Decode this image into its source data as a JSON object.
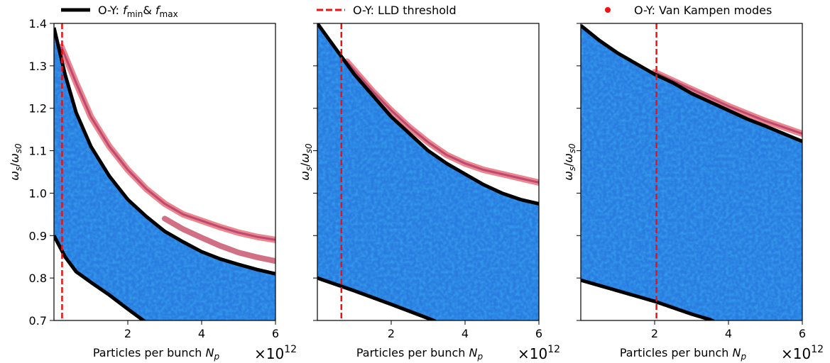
{
  "legend": [
    {
      "kind": "line",
      "prefix": "O-Y: ",
      "text": "& ",
      "math1": "min",
      "math2": "max",
      "color": "#000000"
    },
    {
      "kind": "dashed",
      "text": "O-Y: LLD threshold",
      "color": "#ee1111"
    },
    {
      "kind": "dot",
      "text": "O-Y: Van Kampen modes",
      "color": "#ee1111"
    }
  ],
  "common": {
    "xlabel": "Particles per bunch",
    "xlabel_symbol": "N",
    "xlabel_sub": "p",
    "ylabel_symbol": "ω",
    "ylabel_num_sub": "s",
    "ylabel_den_sub": "s0",
    "x_multiplier": "×10",
    "x_multiplier_exp": "12",
    "heatmap_color": "#2a7ce0",
    "band_color": "#b23a6a"
  },
  "chart_data": [
    {
      "type": "heatmap",
      "title": "",
      "xlabel": "Particles per bunch N_p",
      "ylabel": "ω_s/ω_s0",
      "xlim": [
        0,
        6
      ],
      "ylim": [
        0.7,
        1.4
      ],
      "xticks": [
        "2",
        "4",
        "6"
      ],
      "xtick_values": [
        2,
        4,
        6
      ],
      "yticks": [
        "0.7",
        "0.8",
        "0.9",
        "1.0",
        "1.1",
        "1.2",
        "1.3",
        "1.4"
      ],
      "ytick_values": [
        0.7,
        0.8,
        0.9,
        1.0,
        1.1,
        1.2,
        1.3,
        1.4
      ],
      "show_ytick_labels": true,
      "lld_threshold": 0.22,
      "f_max": [
        [
          0,
          1.39
        ],
        [
          0.3,
          1.28
        ],
        [
          0.6,
          1.19
        ],
        [
          1.0,
          1.11
        ],
        [
          1.5,
          1.04
        ],
        [
          2.0,
          0.985
        ],
        [
          2.5,
          0.945
        ],
        [
          3.0,
          0.91
        ],
        [
          3.5,
          0.885
        ],
        [
          4.0,
          0.862
        ],
        [
          4.5,
          0.845
        ],
        [
          5.0,
          0.832
        ],
        [
          5.5,
          0.82
        ],
        [
          6.0,
          0.81
        ]
      ],
      "f_min": [
        [
          0,
          0.9
        ],
        [
          0.3,
          0.85
        ],
        [
          0.6,
          0.815
        ],
        [
          1.0,
          0.79
        ],
        [
          1.5,
          0.76
        ],
        [
          2.0,
          0.727
        ],
        [
          2.5,
          0.695
        ]
      ],
      "van_kampen_upper": [
        [
          0.2,
          1.345
        ],
        [
          0.6,
          1.26
        ],
        [
          1.0,
          1.18
        ],
        [
          1.5,
          1.11
        ],
        [
          2.0,
          1.055
        ],
        [
          2.5,
          1.01
        ],
        [
          3.0,
          0.975
        ],
        [
          3.5,
          0.95
        ],
        [
          4.0,
          0.935
        ],
        [
          4.5,
          0.92
        ],
        [
          5.0,
          0.907
        ],
        [
          5.5,
          0.897
        ],
        [
          6.0,
          0.89
        ]
      ],
      "van_kampen_lower": [
        [
          3.0,
          0.94
        ],
        [
          3.5,
          0.915
        ],
        [
          4.0,
          0.895
        ],
        [
          4.5,
          0.876
        ],
        [
          5.0,
          0.86
        ],
        [
          5.5,
          0.849
        ],
        [
          6.0,
          0.84
        ]
      ],
      "white_gap": [
        [
          1.2,
          1.1,
          1.16
        ],
        [
          2.0,
          1.0,
          1.05
        ],
        [
          3.0,
          0.92,
          0.965
        ],
        [
          4.0,
          0.88,
          0.925
        ],
        [
          5.0,
          0.845,
          0.895
        ],
        [
          6.0,
          0.82,
          0.88
        ]
      ]
    },
    {
      "type": "heatmap",
      "title": "",
      "xlabel": "Particles per bunch N_p",
      "ylabel": "ω_s/ω_s0",
      "xlim": [
        0,
        6
      ],
      "ylim": [
        0.7,
        1.4
      ],
      "xticks": [
        "2",
        "4",
        "6"
      ],
      "xtick_values": [
        2,
        4,
        6
      ],
      "yticks": [],
      "ytick_values": [
        0.7,
        0.8,
        0.9,
        1.0,
        1.1,
        1.2,
        1.3,
        1.4
      ],
      "show_ytick_labels": false,
      "lld_threshold": 0.65,
      "f_max": [
        [
          0,
          1.4
        ],
        [
          0.5,
          1.34
        ],
        [
          1.0,
          1.28
        ],
        [
          1.5,
          1.23
        ],
        [
          2.0,
          1.18
        ],
        [
          2.5,
          1.14
        ],
        [
          3.0,
          1.1
        ],
        [
          3.5,
          1.07
        ],
        [
          4.0,
          1.045
        ],
        [
          4.5,
          1.02
        ],
        [
          5.0,
          1.0
        ],
        [
          5.5,
          0.985
        ],
        [
          6.0,
          0.975
        ]
      ],
      "f_min": [
        [
          0,
          0.8
        ],
        [
          1.0,
          0.77
        ],
        [
          2.0,
          0.738
        ],
        [
          3.0,
          0.705
        ],
        [
          3.2,
          0.698
        ]
      ],
      "van_kampen_upper": [
        [
          0.8,
          1.31
        ],
        [
          1.5,
          1.24
        ],
        [
          2.0,
          1.195
        ],
        [
          2.5,
          1.155
        ],
        [
          3.0,
          1.12
        ],
        [
          3.5,
          1.09
        ],
        [
          4.0,
          1.07
        ],
        [
          4.5,
          1.055
        ],
        [
          5.0,
          1.045
        ],
        [
          5.5,
          1.035
        ],
        [
          6.0,
          1.025
        ]
      ],
      "van_kampen_lower": [],
      "white_gap": [
        [
          3.5,
          1.075,
          1.085
        ],
        [
          4.5,
          1.025,
          1.05
        ],
        [
          6.0,
          0.98,
          1.02
        ]
      ]
    },
    {
      "type": "heatmap",
      "title": "",
      "xlabel": "Particles per bunch N_p",
      "ylabel": "ω_s/ω_s0",
      "xlim": [
        0,
        6
      ],
      "ylim": [
        0.7,
        1.4
      ],
      "xticks": [
        "2",
        "4",
        "6"
      ],
      "xtick_values": [
        2,
        4,
        6
      ],
      "yticks": [],
      "ytick_values": [
        0.7,
        0.8,
        0.9,
        1.0,
        1.1,
        1.2,
        1.3,
        1.4
      ],
      "show_ytick_labels": false,
      "lld_threshold": 2.05,
      "f_max": [
        [
          0,
          1.395
        ],
        [
          0.5,
          1.36
        ],
        [
          1.0,
          1.33
        ],
        [
          1.5,
          1.305
        ],
        [
          2.0,
          1.28
        ],
        [
          2.5,
          1.26
        ],
        [
          3.0,
          1.235
        ],
        [
          3.5,
          1.215
        ],
        [
          4.0,
          1.195
        ],
        [
          4.5,
          1.175
        ],
        [
          5.0,
          1.158
        ],
        [
          5.5,
          1.14
        ],
        [
          6.0,
          1.122
        ]
      ],
      "f_min": [
        [
          0,
          0.795
        ],
        [
          1.0,
          0.77
        ],
        [
          2.0,
          0.745
        ],
        [
          3.0,
          0.715
        ],
        [
          3.5,
          0.702
        ],
        [
          3.6,
          0.698
        ]
      ],
      "van_kampen_upper": [
        [
          2.0,
          1.285
        ],
        [
          3.0,
          1.245
        ],
        [
          4.0,
          1.205
        ],
        [
          5.0,
          1.17
        ],
        [
          6.0,
          1.14
        ]
      ],
      "van_kampen_lower": [],
      "white_gap": []
    }
  ]
}
